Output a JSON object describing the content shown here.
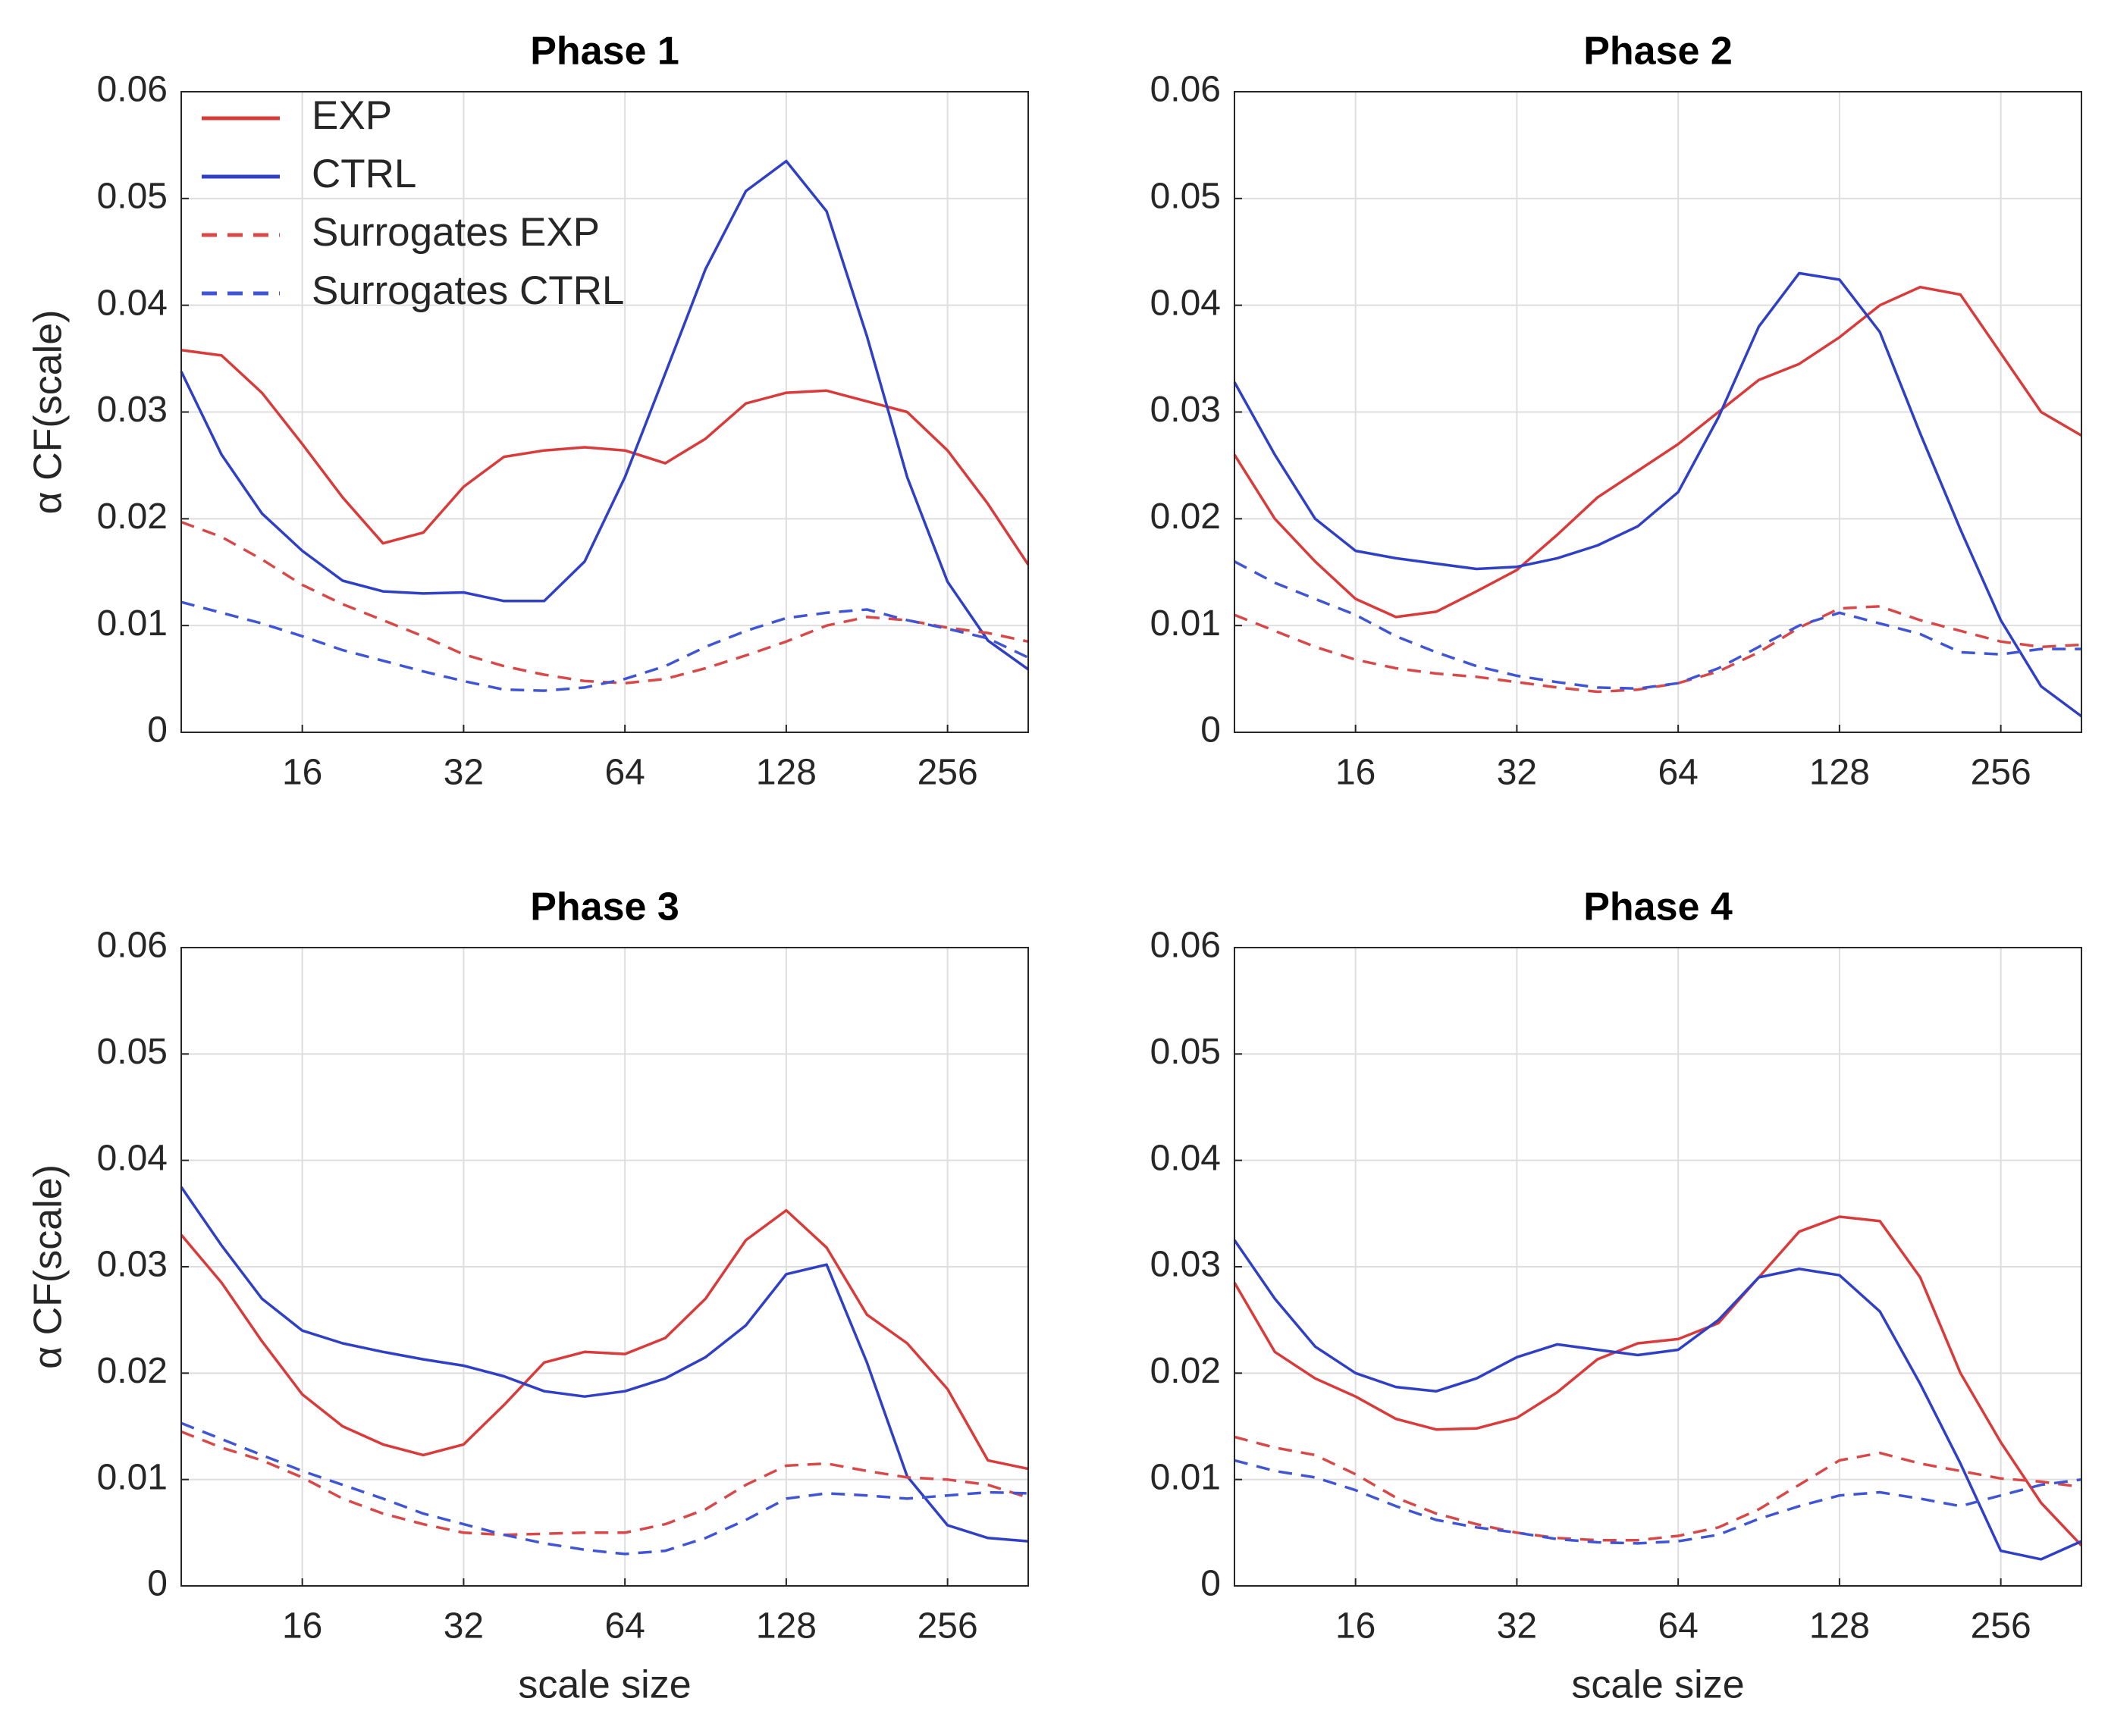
{
  "chart_data": [
    {
      "type": "line",
      "title": "Phase 1",
      "ylabel": "α CF(scale)",
      "xscale": "log",
      "grid": true,
      "legend": "upper left",
      "x": [
        9.51,
        11.31,
        13.45,
        16,
        19.03,
        22.63,
        26.91,
        32,
        38.05,
        45.25,
        53.82,
        64,
        76.11,
        90.51,
        107.63,
        128,
        152.22,
        181.02,
        215.27,
        256,
        304.44,
        362.04
      ],
      "xlim": [
        9.51,
        362.04
      ],
      "xticks": [
        16,
        32,
        64,
        128,
        256
      ],
      "ylim": [
        0,
        0.06
      ],
      "yticks": [
        0,
        0.01,
        0.02,
        0.03,
        0.04,
        0.05,
        0.06
      ],
      "series": [
        {
          "name": "EXP",
          "color": "#d93a3a",
          "dash": false,
          "values": [
            0.0358,
            0.0353,
            0.0318,
            0.027,
            0.022,
            0.0177,
            0.0187,
            0.023,
            0.0258,
            0.0264,
            0.0267,
            0.0264,
            0.0252,
            0.0275,
            0.0308,
            0.0318,
            0.032,
            0.031,
            0.03,
            0.0264,
            0.0214,
            0.0157
          ]
        },
        {
          "name": "CTRL",
          "color": "#2f3fc6",
          "dash": false,
          "values": [
            0.0338,
            0.026,
            0.0205,
            0.017,
            0.0142,
            0.0132,
            0.013,
            0.0131,
            0.0123,
            0.0123,
            0.016,
            0.0239,
            0.0336,
            0.0434,
            0.0507,
            0.0535,
            0.0488,
            0.0371,
            0.0239,
            0.0141,
            0.0086,
            0.0059
          ]
        },
        {
          "name": "Surrogates EXP",
          "color": "#d94848",
          "dash": true,
          "values": [
            0.0197,
            0.0183,
            0.0162,
            0.0138,
            0.012,
            0.0105,
            0.009,
            0.0073,
            0.0062,
            0.0054,
            0.0048,
            0.0046,
            0.005,
            0.006,
            0.0072,
            0.0085,
            0.01,
            0.0108,
            0.0105,
            0.0098,
            0.0093,
            0.0085
          ]
        },
        {
          "name": "Surrogates CTRL",
          "color": "#3f55d6",
          "dash": true,
          "values": [
            0.0122,
            0.0112,
            0.0102,
            0.009,
            0.0077,
            0.0067,
            0.0057,
            0.0048,
            0.004,
            0.0039,
            0.0042,
            0.005,
            0.0062,
            0.008,
            0.0095,
            0.0107,
            0.0112,
            0.0115,
            0.0105,
            0.0097,
            0.0088,
            0.007
          ]
        }
      ]
    },
    {
      "type": "line",
      "title": "Phase 2",
      "xscale": "log",
      "grid": true,
      "x": [
        9.51,
        11.31,
        13.45,
        16,
        19.03,
        22.63,
        26.91,
        32,
        38.05,
        45.25,
        53.82,
        64,
        76.11,
        90.51,
        107.63,
        128,
        152.22,
        181.02,
        215.27,
        256,
        304.44,
        362.04
      ],
      "xlim": [
        9.51,
        362.04
      ],
      "xticks": [
        16,
        32,
        64,
        128,
        256
      ],
      "ylim": [
        0,
        0.06
      ],
      "yticks": [
        0,
        0.01,
        0.02,
        0.03,
        0.04,
        0.05,
        0.06
      ],
      "series": [
        {
          "color": "#d93a3a",
          "dash": false,
          "values": [
            0.026,
            0.02,
            0.016,
            0.0125,
            0.0108,
            0.0113,
            0.0132,
            0.0152,
            0.0185,
            0.022,
            0.0245,
            0.027,
            0.03,
            0.033,
            0.0345,
            0.037,
            0.04,
            0.0417,
            0.041,
            0.0355,
            0.03,
            0.0278
          ]
        },
        {
          "color": "#2f3fc6",
          "dash": false,
          "values": [
            0.0328,
            0.026,
            0.02,
            0.017,
            0.0163,
            0.0158,
            0.0153,
            0.0155,
            0.0163,
            0.0175,
            0.0193,
            0.0225,
            0.0295,
            0.038,
            0.043,
            0.0424,
            0.0375,
            0.028,
            0.019,
            0.0105,
            0.0043,
            0.0015
          ]
        },
        {
          "color": "#d94848",
          "dash": true,
          "values": [
            0.011,
            0.0095,
            0.008,
            0.0068,
            0.006,
            0.0055,
            0.0052,
            0.0047,
            0.0042,
            0.0038,
            0.004,
            0.0046,
            0.0057,
            0.0075,
            0.0098,
            0.0116,
            0.0118,
            0.0105,
            0.0095,
            0.0085,
            0.008,
            0.0082
          ]
        },
        {
          "color": "#3f55d6",
          "dash": true,
          "values": [
            0.016,
            0.014,
            0.0125,
            0.011,
            0.009,
            0.0075,
            0.0062,
            0.0053,
            0.0047,
            0.0042,
            0.0041,
            0.0046,
            0.006,
            0.008,
            0.01,
            0.0112,
            0.0102,
            0.0092,
            0.0075,
            0.0073,
            0.0078,
            0.0078
          ]
        }
      ]
    },
    {
      "type": "line",
      "title": "Phase 3",
      "ylabel": "α CF(scale)",
      "xlabel": "scale size",
      "xscale": "log",
      "grid": true,
      "x": [
        9.51,
        11.31,
        13.45,
        16,
        19.03,
        22.63,
        26.91,
        32,
        38.05,
        45.25,
        53.82,
        64,
        76.11,
        90.51,
        107.63,
        128,
        152.22,
        181.02,
        215.27,
        256,
        304.44,
        362.04
      ],
      "xlim": [
        9.51,
        362.04
      ],
      "xticks": [
        16,
        32,
        64,
        128,
        256
      ],
      "ylim": [
        0,
        0.06
      ],
      "yticks": [
        0,
        0.01,
        0.02,
        0.03,
        0.04,
        0.05,
        0.06
      ],
      "series": [
        {
          "color": "#d93a3a",
          "dash": false,
          "values": [
            0.033,
            0.0285,
            0.023,
            0.018,
            0.015,
            0.0133,
            0.0123,
            0.0133,
            0.017,
            0.021,
            0.022,
            0.0218,
            0.0233,
            0.027,
            0.0325,
            0.0353,
            0.0318,
            0.0255,
            0.0228,
            0.0185,
            0.0118,
            0.011
          ]
        },
        {
          "color": "#2f3fc6",
          "dash": false,
          "values": [
            0.0375,
            0.032,
            0.027,
            0.024,
            0.0228,
            0.022,
            0.0213,
            0.0207,
            0.0197,
            0.0183,
            0.0178,
            0.0183,
            0.0195,
            0.0215,
            0.0245,
            0.0293,
            0.0302,
            0.021,
            0.0103,
            0.0057,
            0.0045,
            0.0042
          ]
        },
        {
          "color": "#d94848",
          "dash": true,
          "values": [
            0.0145,
            0.013,
            0.0118,
            0.0102,
            0.0082,
            0.0068,
            0.0058,
            0.005,
            0.0048,
            0.0049,
            0.005,
            0.005,
            0.0058,
            0.0072,
            0.0095,
            0.0113,
            0.0115,
            0.0108,
            0.0102,
            0.01,
            0.0095,
            0.0083
          ]
        },
        {
          "color": "#3f55d6",
          "dash": true,
          "values": [
            0.0153,
            0.0138,
            0.0123,
            0.0108,
            0.0095,
            0.0082,
            0.0068,
            0.0058,
            0.0048,
            0.004,
            0.0034,
            0.003,
            0.0033,
            0.0045,
            0.0062,
            0.0082,
            0.0087,
            0.0085,
            0.0082,
            0.0085,
            0.0088,
            0.0087
          ]
        }
      ]
    },
    {
      "type": "line",
      "title": "Phase 4",
      "xlabel": "scale size",
      "xscale": "log",
      "grid": true,
      "x": [
        9.51,
        11.31,
        13.45,
        16,
        19.03,
        22.63,
        26.91,
        32,
        38.05,
        45.25,
        53.82,
        64,
        76.11,
        90.51,
        107.63,
        128,
        152.22,
        181.02,
        215.27,
        256,
        304.44,
        362.04
      ],
      "xlim": [
        9.51,
        362.04
      ],
      "xticks": [
        16,
        32,
        64,
        128,
        256
      ],
      "ylim": [
        0,
        0.06
      ],
      "yticks": [
        0,
        0.01,
        0.02,
        0.03,
        0.04,
        0.05,
        0.06
      ],
      "series": [
        {
          "color": "#d93a3a",
          "dash": false,
          "values": [
            0.0285,
            0.022,
            0.0195,
            0.0178,
            0.0157,
            0.0147,
            0.0148,
            0.0158,
            0.0182,
            0.0213,
            0.0228,
            0.0232,
            0.0247,
            0.029,
            0.0333,
            0.0347,
            0.0343,
            0.029,
            0.02,
            0.0135,
            0.0078,
            0.0038
          ]
        },
        {
          "color": "#2f3fc6",
          "dash": false,
          "values": [
            0.0325,
            0.027,
            0.0225,
            0.02,
            0.0187,
            0.0183,
            0.0195,
            0.0215,
            0.0227,
            0.0222,
            0.0217,
            0.0222,
            0.025,
            0.029,
            0.0298,
            0.0292,
            0.0258,
            0.019,
            0.0115,
            0.0033,
            0.0025,
            0.0042
          ]
        },
        {
          "color": "#d94848",
          "dash": true,
          "values": [
            0.014,
            0.013,
            0.0123,
            0.0105,
            0.0083,
            0.0068,
            0.0058,
            0.005,
            0.0045,
            0.0043,
            0.0043,
            0.0047,
            0.0055,
            0.0072,
            0.0095,
            0.0118,
            0.0125,
            0.0115,
            0.0108,
            0.0101,
            0.0098,
            0.0093
          ]
        },
        {
          "color": "#3f55d6",
          "dash": true,
          "values": [
            0.0118,
            0.0108,
            0.0102,
            0.009,
            0.0075,
            0.0062,
            0.0055,
            0.005,
            0.0044,
            0.0041,
            0.004,
            0.0042,
            0.0048,
            0.0063,
            0.0075,
            0.0085,
            0.0088,
            0.0082,
            0.0075,
            0.0085,
            0.0095,
            0.01
          ]
        }
      ]
    }
  ]
}
